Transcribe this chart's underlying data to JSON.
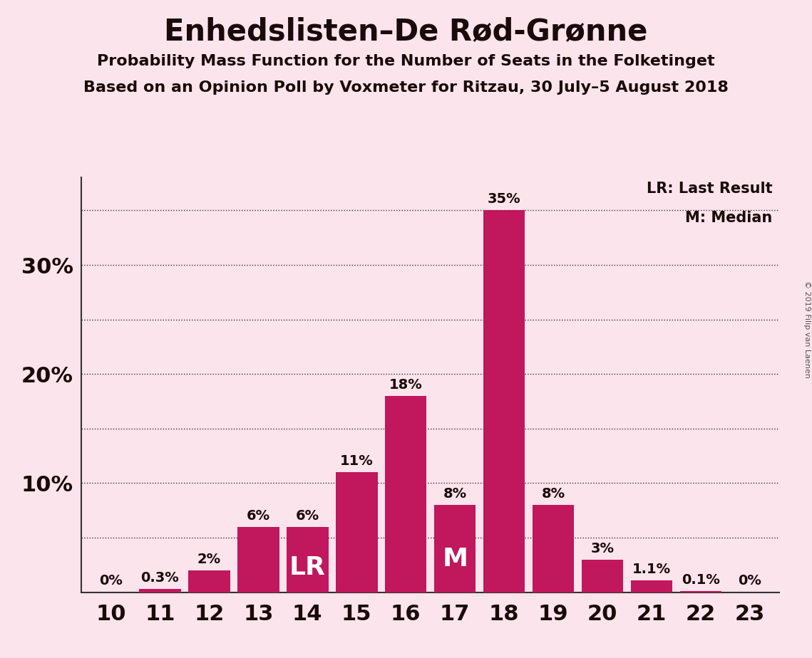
{
  "title": "Enhedslisten–De Rød-Grønne",
  "subtitle1": "Probability Mass Function for the Number of Seats in the Folketinget",
  "subtitle2": "Based on an Opinion Poll by Voxmeter for Ritzau, 30 July–5 August 2018",
  "copyright": "© 2019 Filip van Laenen",
  "categories": [
    10,
    11,
    12,
    13,
    14,
    15,
    16,
    17,
    18,
    19,
    20,
    21,
    22,
    23
  ],
  "values": [
    0.0,
    0.3,
    2.0,
    6.0,
    6.0,
    11.0,
    18.0,
    8.0,
    35.0,
    8.0,
    3.0,
    1.1,
    0.1,
    0.0
  ],
  "labels": [
    "0%",
    "0.3%",
    "2%",
    "6%",
    "6%",
    "11%",
    "18%",
    "8%",
    "35%",
    "8%",
    "3%",
    "1.1%",
    "0.1%",
    "0%"
  ],
  "bar_color": "#c0175d",
  "background_color": "#fce4ec",
  "lr_seat": 14,
  "median_seat": 17,
  "legend_lr": "LR: Last Result",
  "legend_m": "M: Median",
  "ylim": [
    0,
    38
  ],
  "ytick_positions": [
    10,
    20,
    30
  ],
  "ytick_labels": [
    "10%",
    "20%",
    "30%"
  ],
  "grid_y": [
    5,
    10,
    15,
    20,
    25,
    30,
    35
  ],
  "title_fontsize": 30,
  "subtitle_fontsize": 16,
  "axis_fontsize": 22,
  "label_fontsize": 14,
  "lr_m_fontsize": 26
}
